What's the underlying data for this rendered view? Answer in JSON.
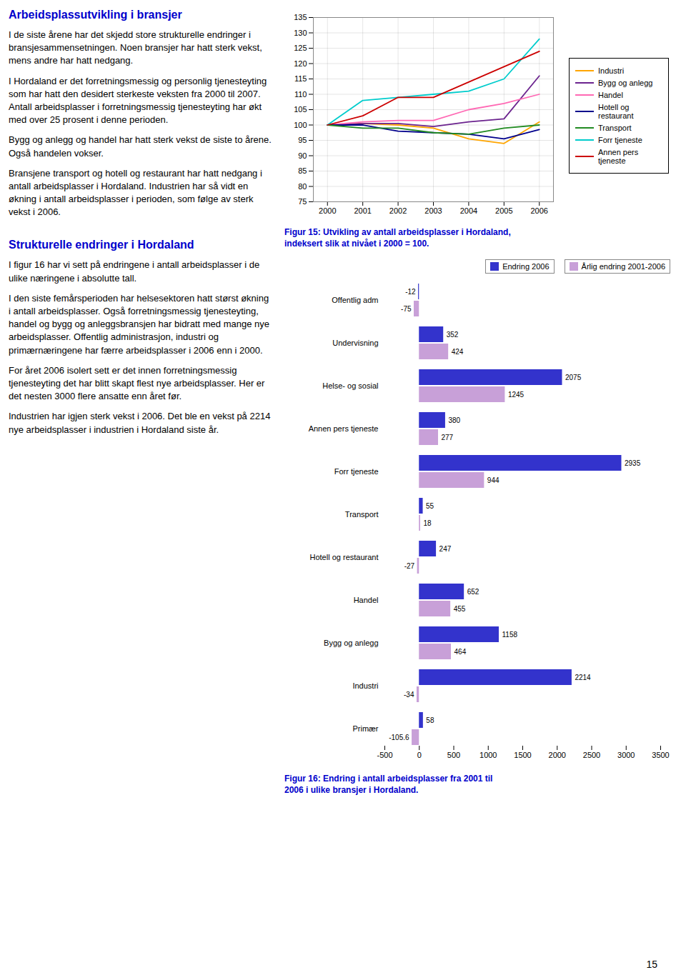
{
  "chart_data": [
    {
      "type": "line",
      "title": "Figur 15: Utvikling av antall arbeidsplasser i Hordaland,\nindeksert slik at nivået i 2000 = 100.",
      "x": [
        2000,
        2001,
        2002,
        2003,
        2004,
        2005,
        2006
      ],
      "series": [
        {
          "name": "Industri",
          "color": "#FFA500",
          "values": [
            100,
            100.5,
            100,
            99,
            95.5,
            94,
            101
          ]
        },
        {
          "name": "Bygg og anlegg",
          "color": "#6B238E",
          "values": [
            100,
            100.5,
            100.5,
            99.5,
            101,
            102,
            116
          ]
        },
        {
          "name": "Handel",
          "color": "#FF69B4",
          "values": [
            100,
            101,
            101.5,
            101.5,
            105,
            107,
            110
          ]
        },
        {
          "name": "Hotell og restaurant",
          "color": "#00008B",
          "values": [
            100,
            100,
            98,
            97.5,
            97,
            95.5,
            98.5
          ]
        },
        {
          "name": "Transport",
          "color": "#228B22",
          "values": [
            100,
            99,
            99,
            97.5,
            97,
            99,
            100
          ]
        },
        {
          "name": "Forr tjeneste",
          "color": "#00CCCC",
          "values": [
            100,
            108,
            109,
            110,
            111,
            115,
            128
          ]
        },
        {
          "name": "Annen pers tjeneste",
          "color": "#CC0000",
          "values": [
            100,
            103,
            109,
            109,
            114,
            119,
            124
          ]
        }
      ],
      "xlim": [
        1999.6,
        2006.4
      ],
      "xticks": [
        2000,
        2001,
        2002,
        2003,
        2004,
        2005,
        2006
      ],
      "ylim": [
        75,
        135
      ],
      "yticks": [
        75,
        80,
        85,
        90,
        95,
        100,
        105,
        110,
        115,
        120,
        125,
        130,
        135
      ],
      "grid": true,
      "legend": "right"
    },
    {
      "type": "bar",
      "orientation": "horizontal",
      "title": "Figur 16: Endring i antall arbeidsplasser fra 2001 til\n2006 i ulike bransjer i Hordaland.",
      "categories": [
        "Offentlig adm",
        "Undervisning",
        "Helse- og sosial",
        "Annen pers tjeneste",
        "Forr tjeneste",
        "Transport",
        "Hotell og restaurant",
        "Handel",
        "Bygg og anlegg",
        "Industri",
        "Primær"
      ],
      "series": [
        {
          "name": "Endring 2006",
          "color": "#3333CC",
          "values": [
            -12,
            352,
            2075,
            380,
            2935,
            55,
            247,
            652,
            1158,
            2214,
            58
          ]
        },
        {
          "name": "Årlig endring 2001-2006",
          "color": "#C8A0D8",
          "values": [
            -75,
            424,
            1245,
            277,
            944,
            18,
            -27,
            455,
            464,
            -34,
            -105.6
          ]
        }
      ],
      "xlim": [
        -500,
        3500
      ],
      "xticks": [
        -500,
        0,
        500,
        1000,
        1500,
        2000,
        2500,
        3000,
        3500
      ],
      "grid": false,
      "data_labels": true,
      "legend": "top"
    }
  ],
  "text": [
    {
      "title": "Arbeidsplassutvikling i bransjer",
      "paragraphs": [
        "I de siste årene har det skjedd store strukturelle endringer i bransjesammensetningen.  Noen bransjer har hatt sterk vekst, mens andre har hatt nedgang.",
        "I Hordaland er det forretningsmessig og personlig tjenesteyting som har hatt den desidert sterkeste veksten fra 2000 til 2007.  Antall arbeidsplasser i forretningsmessig tjenesteyting har økt med over 25 prosent i denne perioden.",
        "Bygg og anlegg og handel har hatt sterk vekst de siste to årene. Også handelen vokser.",
        "Bransjene transport og hotell og restaurant har hatt nedgang i antall arbeidsplasser i Hordaland. Industrien har så vidt en økning i antall arbeidsplasser i perioden, som følge av sterk vekst i 2006."
      ]
    },
    {
      "title": "Strukturelle endringer i Hordaland",
      "paragraphs": [
        "I figur 16 har vi sett på endringene i antall arbeidsplasser i de ulike næringene i absolutte tall.",
        "I den siste femårsperioden har helsesektoren hatt størst økning i antall arbeidsplasser.  Også forretningsmessig tjenesteyting, handel og bygg og anleggsbransjen har bidratt med mange nye arbeidsplasser.  Offentlig administrasjon, industri og primærnæringene har færre arbeidsplasser i 2006 enn i 2000.",
        "For året 2006 isolert sett er det innen forretningsmessig tjenesteyting det har blitt skapt flest nye arbeidsplasser.  Her er det nesten 3000 flere ansatte enn året før.",
        "Industrien har igjen sterk vekst i 2006.  Det ble en vekst på 2214 nye arbeidsplasser i industrien i Hordaland siste år."
      ]
    }
  ],
  "page_number": "15"
}
